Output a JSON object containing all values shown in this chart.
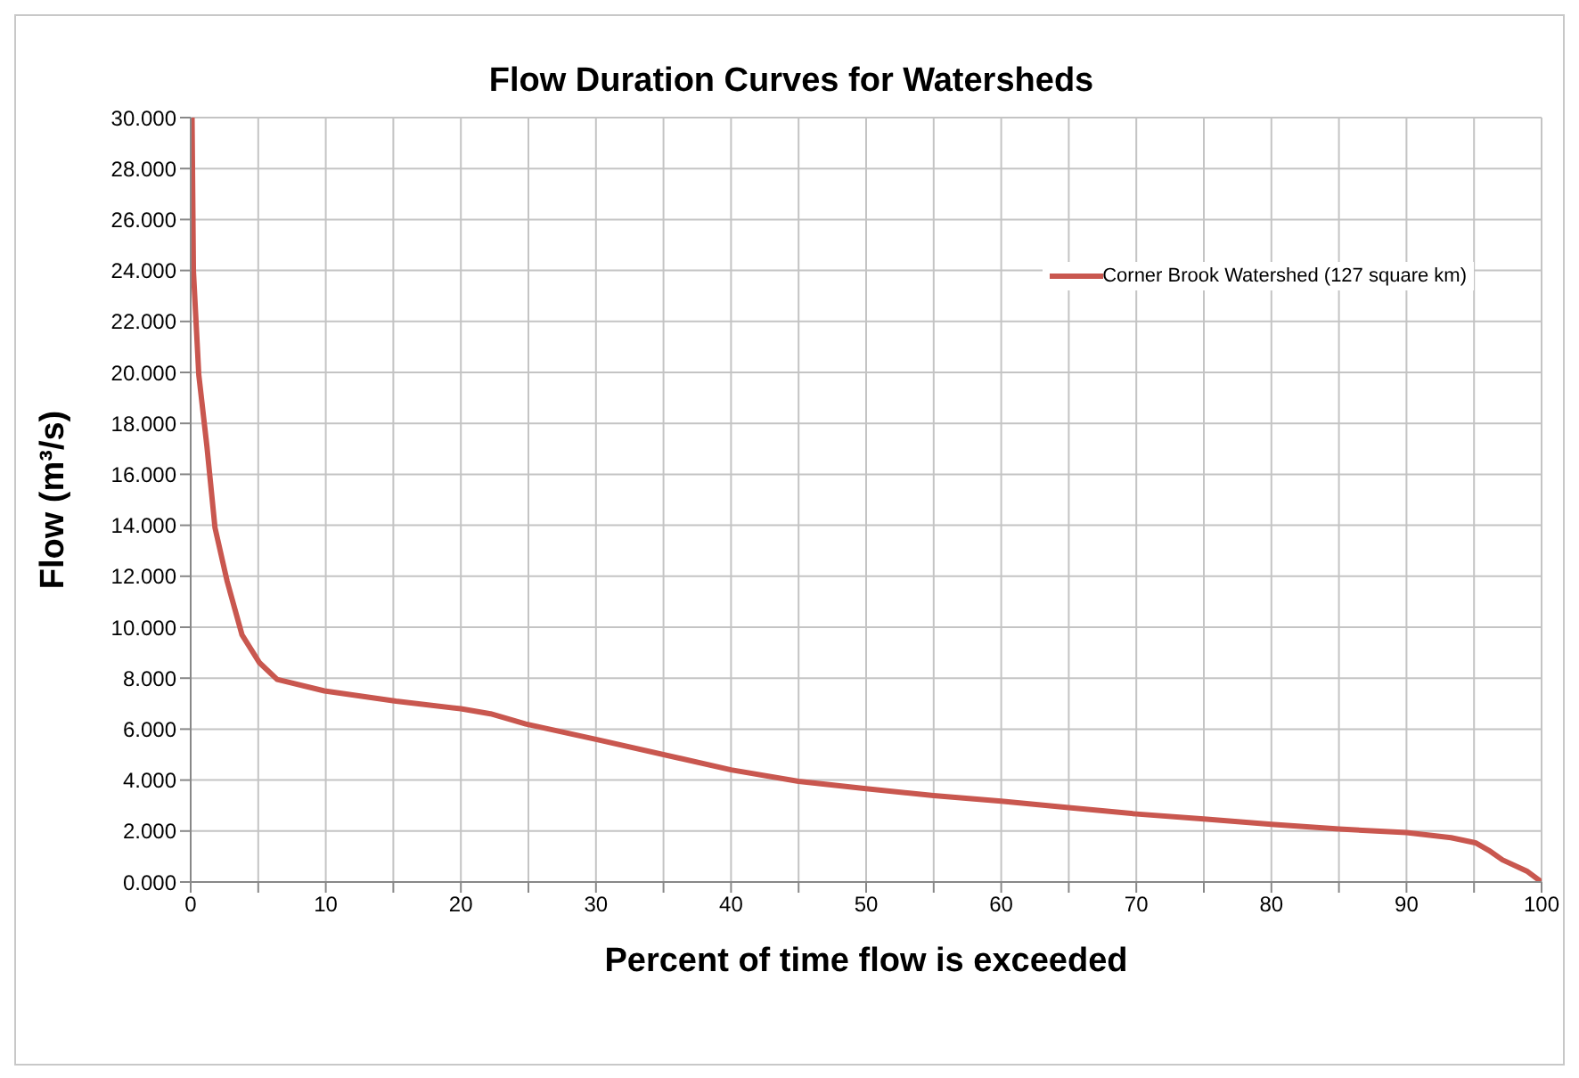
{
  "chart_data": {
    "type": "line",
    "title": "Flow Duration Curves for Watersheds",
    "xlabel": "Percent of time flow is exceeded",
    "ylabel": "Flow (m³/s)",
    "series": [
      {
        "name": "Corner Brook Watershed (127 square km)",
        "color": "#c9574f",
        "x": [
          0.1,
          0.2,
          0.6,
          1.2,
          1.8,
          2.7,
          3.8,
          5.1,
          6.4,
          9.9,
          15.2,
          20,
          22.2,
          24.8,
          30,
          40,
          45,
          50,
          55,
          60,
          65,
          70,
          75,
          80,
          85,
          90,
          93.3,
          95.1,
          96.1,
          97.1,
          98.9,
          100
        ],
        "values": [
          30,
          24,
          19.9,
          17.1,
          13.9,
          11.8,
          9.7,
          8.6,
          7.95,
          7.5,
          7.1,
          6.8,
          6.6,
          6.2,
          5.6,
          4.4,
          3.95,
          3.66,
          3.39,
          3.17,
          2.92,
          2.67,
          2.47,
          2.26,
          2.08,
          1.94,
          1.74,
          1.54,
          1.24,
          0.87,
          0.43,
          0
        ]
      }
    ],
    "xlim": [
      0,
      100
    ],
    "xticks": [
      0,
      {
        "value": 5,
        "label": null
      },
      10,
      {
        "value": 15,
        "label": null
      },
      20,
      {
        "value": 25,
        "label": null
      },
      30,
      {
        "value": 35,
        "label": null
      },
      40,
      {
        "value": 45,
        "label": null
      },
      50,
      {
        "value": 55,
        "label": null
      },
      60,
      {
        "value": 65,
        "label": null
      },
      70,
      {
        "value": 75,
        "label": null
      },
      80,
      {
        "value": 85,
        "label": null
      },
      90,
      {
        "value": 95,
        "label": null
      },
      100
    ],
    "ylim": [
      0,
      30
    ],
    "yticks": [
      {
        "value": 0,
        "label": "0.000"
      },
      {
        "value": 2,
        "label": "2.000"
      },
      {
        "value": 4,
        "label": "4.000"
      },
      {
        "value": 6,
        "label": "6.000"
      },
      {
        "value": 8,
        "label": "8.000"
      },
      {
        "value": 10,
        "label": "10.000"
      },
      {
        "value": 12,
        "label": "12.000"
      },
      {
        "value": 14,
        "label": "14.000"
      },
      {
        "value": 16,
        "label": "16.000"
      },
      {
        "value": 18,
        "label": "18.000"
      },
      {
        "value": 20,
        "label": "20.000"
      },
      {
        "value": 22,
        "label": "22.000"
      },
      {
        "value": 24,
        "label": "24.000"
      },
      {
        "value": 26,
        "label": "26.000"
      },
      {
        "value": 28,
        "label": "28.000"
      },
      {
        "value": 30,
        "label": "30.000"
      }
    ],
    "grid": true,
    "legend": "top right",
    "marker": "none",
    "line_style": "solid"
  }
}
